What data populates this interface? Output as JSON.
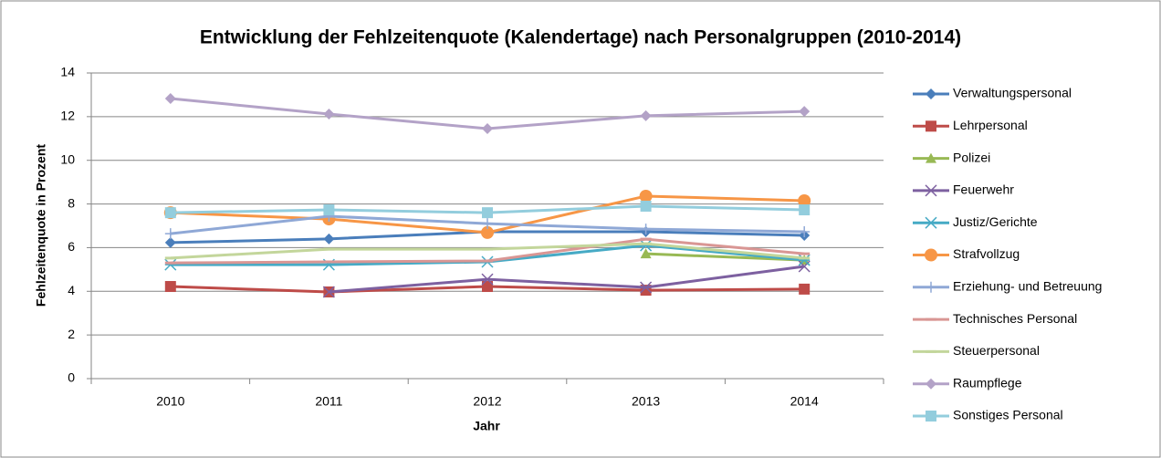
{
  "chart_data": {
    "type": "line",
    "title": "Entwicklung der Fehlzeitenquote (Kalendertage) nach Personalgruppen (2010-2014)",
    "x_label": "Jahr",
    "y_label": "Fehlzeitenquote in Prozent",
    "categories": [
      "2010",
      "2011",
      "2012",
      "2013",
      "2014"
    ],
    "ylim": [
      0,
      14
    ],
    "yticks": [
      0,
      2,
      4,
      6,
      8,
      10,
      12,
      14
    ],
    "grid": true,
    "legend": "right",
    "series": [
      {
        "name": "Verwaltungspersonal",
        "color": "#4a7ebb",
        "marker": "diamond",
        "values": [
          6.23,
          6.4,
          6.73,
          6.73,
          6.56
        ]
      },
      {
        "name": "Lehrpersonal",
        "color": "#be4b48",
        "marker": "square",
        "values": [
          4.22,
          3.97,
          4.22,
          4.05,
          4.1
        ]
      },
      {
        "name": "Polizei",
        "color": "#98b954",
        "marker": "triangle",
        "values": [
          null,
          null,
          null,
          5.72,
          5.43
        ]
      },
      {
        "name": "Feuerwehr",
        "color": "#7d60a0",
        "marker": "x",
        "values": [
          null,
          3.97,
          4.55,
          4.18,
          5.14
        ]
      },
      {
        "name": "Justiz/Gerichte",
        "color": "#46aac5",
        "marker": "star",
        "values": [
          5.22,
          5.22,
          5.35,
          6.1,
          5.43
        ]
      },
      {
        "name": "Strafvollzug",
        "color": "#f79646",
        "marker": "circle",
        "values": [
          7.6,
          7.31,
          6.69,
          8.36,
          8.15
        ]
      },
      {
        "name": "Erziehung- und Betreuung",
        "color": "#8fa8d6",
        "marker": "plus",
        "values": [
          6.64,
          7.44,
          7.1,
          6.85,
          6.73
        ]
      },
      {
        "name": "Technisches Personal",
        "color": "#d99694",
        "marker": "dash",
        "values": [
          5.3,
          5.35,
          5.39,
          6.39,
          5.72
        ]
      },
      {
        "name": "Steuerpersonal",
        "color": "#c3d69b",
        "marker": "dash",
        "values": [
          5.52,
          5.93,
          5.93,
          6.18,
          5.52
        ]
      },
      {
        "name": "Raumpflege",
        "color": "#b3a2c7",
        "marker": "diamond",
        "values": [
          12.83,
          12.12,
          11.45,
          12.04,
          12.24
        ]
      },
      {
        "name": "Sonstiges Personal",
        "color": "#93cddd",
        "marker": "square",
        "values": [
          7.6,
          7.73,
          7.6,
          7.9,
          7.73
        ]
      }
    ]
  }
}
